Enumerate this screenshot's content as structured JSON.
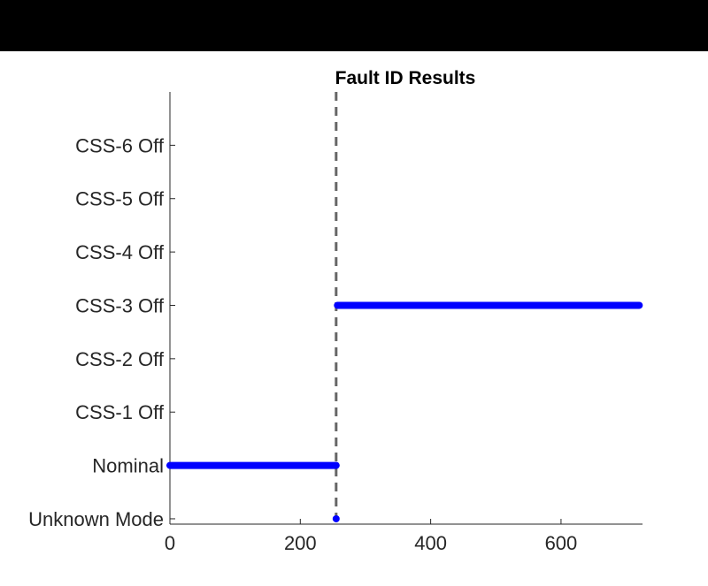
{
  "chart_data": {
    "type": "scatter",
    "title": "Fault ID Results",
    "xlabel": "",
    "ylabel": "",
    "xlim": [
      0,
      725
    ],
    "ylim": [
      -0.1,
      8
    ],
    "xticks": [
      0,
      200,
      400,
      600
    ],
    "yticks": [
      0,
      1,
      2,
      3,
      4,
      5,
      6,
      7
    ],
    "ytick_labels": [
      "Unknown Mode",
      "Nominal",
      "CSS-1 Off",
      "CSS-2 Off",
      "CSS-3 Off",
      "CSS-4 Off",
      "CSS-5 Off",
      "CSS-6 Off"
    ],
    "grid": false,
    "series_color": "#0000ff",
    "vline": {
      "x": 255,
      "style": "dashed",
      "color": "#666666"
    },
    "segments": [
      {
        "x_start": 0,
        "x_end": 255,
        "y": 1
      },
      {
        "x_start": 255,
        "x_end": 255,
        "y": 0
      },
      {
        "x_start": 257,
        "x_end": 720,
        "y": 4
      }
    ]
  }
}
